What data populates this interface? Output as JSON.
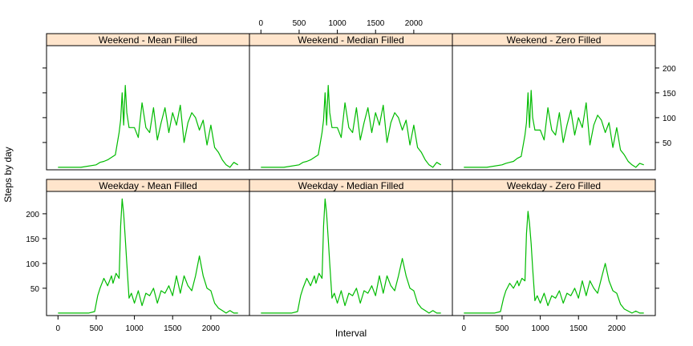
{
  "chart_data": {
    "type": "line",
    "xlabel": "Interval",
    "ylabel": "Steps by day",
    "xlim": [
      -150,
      2505
    ],
    "ylim": [
      -5,
      245
    ],
    "x_ticks": [
      0,
      500,
      1000,
      1500,
      2000
    ],
    "y_ticks": [
      50,
      100,
      150,
      200
    ],
    "colors": {
      "line": "#00bb00",
      "strip": "#ffe5cc",
      "frame": "#000000"
    },
    "panels": [
      {
        "label": "Weekend - Mean Filled",
        "row": 1,
        "col": 1,
        "x": [
          0,
          300,
          500,
          550,
          600,
          650,
          700,
          750,
          800,
          820,
          840,
          860,
          880,
          900,
          930,
          960,
          1000,
          1050,
          1100,
          1150,
          1200,
          1250,
          1300,
          1350,
          1400,
          1450,
          1500,
          1550,
          1600,
          1650,
          1700,
          1750,
          1800,
          1850,
          1900,
          1950,
          2000,
          2050,
          2100,
          2150,
          2200,
          2250,
          2300,
          2355
        ],
        "values": [
          0,
          0,
          5,
          10,
          12,
          15,
          20,
          25,
          70,
          95,
          150,
          85,
          165,
          110,
          80,
          80,
          80,
          60,
          130,
          80,
          70,
          120,
          55,
          90,
          120,
          70,
          110,
          85,
          125,
          50,
          90,
          110,
          100,
          75,
          95,
          45,
          85,
          40,
          30,
          15,
          5,
          0,
          10,
          5
        ]
      },
      {
        "label": "Weekend - Median Filled",
        "row": 1,
        "col": 2,
        "x": [
          0,
          300,
          500,
          550,
          600,
          650,
          700,
          750,
          800,
          820,
          840,
          860,
          880,
          900,
          930,
          960,
          1000,
          1050,
          1100,
          1150,
          1200,
          1250,
          1300,
          1350,
          1400,
          1450,
          1500,
          1550,
          1600,
          1650,
          1700,
          1750,
          1800,
          1850,
          1900,
          1950,
          2000,
          2050,
          2100,
          2150,
          2200,
          2250,
          2300,
          2355
        ],
        "values": [
          0,
          0,
          5,
          10,
          12,
          15,
          20,
          25,
          70,
          95,
          150,
          85,
          165,
          110,
          80,
          80,
          80,
          60,
          130,
          80,
          70,
          120,
          55,
          90,
          120,
          70,
          110,
          85,
          125,
          50,
          90,
          110,
          100,
          75,
          95,
          45,
          85,
          40,
          30,
          15,
          5,
          0,
          10,
          5
        ]
      },
      {
        "label": "Weekend - Zero Filled",
        "row": 1,
        "col": 3,
        "x": [
          0,
          300,
          500,
          550,
          600,
          650,
          700,
          750,
          800,
          820,
          840,
          860,
          880,
          900,
          930,
          960,
          1000,
          1050,
          1100,
          1150,
          1200,
          1250,
          1300,
          1350,
          1400,
          1450,
          1500,
          1550,
          1600,
          1650,
          1700,
          1750,
          1800,
          1850,
          1900,
          1950,
          2000,
          2050,
          2100,
          2150,
          2200,
          2250,
          2300,
          2355
        ],
        "values": [
          0,
          0,
          5,
          8,
          10,
          12,
          18,
          22,
          65,
          90,
          150,
          80,
          155,
          100,
          75,
          75,
          75,
          55,
          120,
          75,
          65,
          110,
          50,
          85,
          115,
          65,
          100,
          80,
          130,
          45,
          85,
          105,
          95,
          70,
          90,
          40,
          80,
          35,
          25,
          12,
          5,
          0,
          8,
          5
        ]
      },
      {
        "label": "Weekday - Mean Filled",
        "row": 0,
        "col": 1,
        "x": [
          0,
          400,
          480,
          520,
          550,
          600,
          650,
          700,
          720,
          760,
          800,
          820,
          840,
          860,
          880,
          900,
          930,
          960,
          1000,
          1050,
          1100,
          1150,
          1200,
          1250,
          1300,
          1350,
          1400,
          1450,
          1500,
          1550,
          1600,
          1650,
          1700,
          1750,
          1800,
          1850,
          1900,
          1950,
          2000,
          2050,
          2100,
          2150,
          2200,
          2250,
          2300,
          2355
        ],
        "values": [
          0,
          0,
          3,
          35,
          50,
          70,
          55,
          75,
          60,
          80,
          70,
          175,
          230,
          200,
          150,
          100,
          30,
          40,
          20,
          45,
          15,
          40,
          35,
          50,
          20,
          45,
          40,
          55,
          35,
          75,
          40,
          75,
          55,
          45,
          75,
          115,
          75,
          50,
          45,
          20,
          10,
          5,
          0,
          5,
          0,
          0
        ]
      },
      {
        "label": "Weekday - Median Filled",
        "row": 0,
        "col": 2,
        "x": [
          0,
          400,
          480,
          520,
          550,
          600,
          650,
          700,
          720,
          760,
          800,
          820,
          840,
          860,
          880,
          900,
          930,
          960,
          1000,
          1050,
          1100,
          1150,
          1200,
          1250,
          1300,
          1350,
          1400,
          1450,
          1500,
          1550,
          1600,
          1650,
          1700,
          1750,
          1800,
          1850,
          1900,
          1950,
          2000,
          2050,
          2100,
          2150,
          2200,
          2250,
          2300,
          2355
        ],
        "values": [
          0,
          0,
          3,
          35,
          50,
          70,
          55,
          75,
          60,
          80,
          70,
          175,
          230,
          200,
          150,
          100,
          30,
          40,
          20,
          45,
          15,
          40,
          35,
          50,
          20,
          45,
          40,
          55,
          35,
          75,
          40,
          75,
          55,
          45,
          75,
          110,
          75,
          50,
          45,
          20,
          10,
          5,
          0,
          5,
          0,
          0
        ]
      },
      {
        "label": "Weekday - Zero Filled",
        "row": 0,
        "col": 3,
        "x": [
          0,
          400,
          480,
          520,
          550,
          600,
          650,
          700,
          720,
          760,
          800,
          820,
          840,
          860,
          880,
          900,
          930,
          960,
          1000,
          1050,
          1100,
          1150,
          1200,
          1250,
          1300,
          1350,
          1400,
          1450,
          1500,
          1550,
          1600,
          1650,
          1700,
          1750,
          1800,
          1850,
          1900,
          1950,
          2000,
          2050,
          2100,
          2150,
          2200,
          2250,
          2300,
          2355
        ],
        "values": [
          0,
          0,
          3,
          30,
          45,
          60,
          50,
          65,
          55,
          70,
          65,
          160,
          205,
          180,
          140,
          90,
          25,
          35,
          20,
          40,
          15,
          35,
          30,
          45,
          20,
          40,
          35,
          50,
          30,
          65,
          35,
          65,
          50,
          40,
          70,
          100,
          65,
          45,
          40,
          18,
          8,
          4,
          0,
          4,
          0,
          0
        ]
      }
    ]
  }
}
